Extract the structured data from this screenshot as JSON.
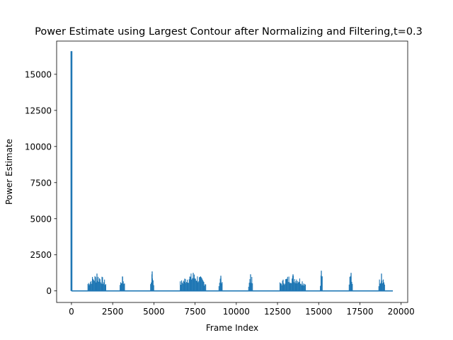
{
  "chart_data": {
    "type": "line",
    "title": "Power Estimate using Largest Contour after Normalizing and Filtering,t=0.3",
    "xlabel": "Frame Index",
    "ylabel": "Power Estimate",
    "xlim": [
      -900,
      20400
    ],
    "ylim": [
      -800,
      17300
    ],
    "x_ticks": [
      0,
      2500,
      5000,
      7500,
      10000,
      12500,
      15000,
      17500,
      20000
    ],
    "x_tick_labels": [
      "0",
      "2500",
      "5000",
      "7500",
      "10000",
      "12500",
      "15000",
      "17500",
      "20000"
    ],
    "y_ticks": [
      0,
      2500,
      5000,
      7500,
      10000,
      12500,
      15000
    ],
    "y_tick_labels": [
      "0",
      "2500",
      "5000",
      "7500",
      "10000",
      "12500",
      "15000"
    ],
    "grid": false,
    "line_color": "#1f77b4",
    "baseline": 0,
    "x_range": [
      0,
      19500
    ],
    "initial_spike": {
      "x": 0,
      "y": 16600
    },
    "bursts": [
      {
        "start": 1000,
        "end": 2100,
        "peak": 1200
      },
      {
        "start": 2950,
        "end": 3250,
        "peak": 1000
      },
      {
        "start": 4800,
        "end": 5000,
        "peak": 1350
      },
      {
        "start": 6600,
        "end": 8150,
        "peak": 1250
      },
      {
        "start": 8950,
        "end": 9150,
        "peak": 1050
      },
      {
        "start": 10750,
        "end": 11000,
        "peak": 1150
      },
      {
        "start": 12650,
        "end": 14200,
        "peak": 1150
      },
      {
        "start": 15100,
        "end": 15250,
        "peak": 1400
      },
      {
        "start": 16850,
        "end": 17050,
        "peak": 1250
      },
      {
        "start": 18650,
        "end": 19000,
        "peak": 1200
      }
    ]
  }
}
